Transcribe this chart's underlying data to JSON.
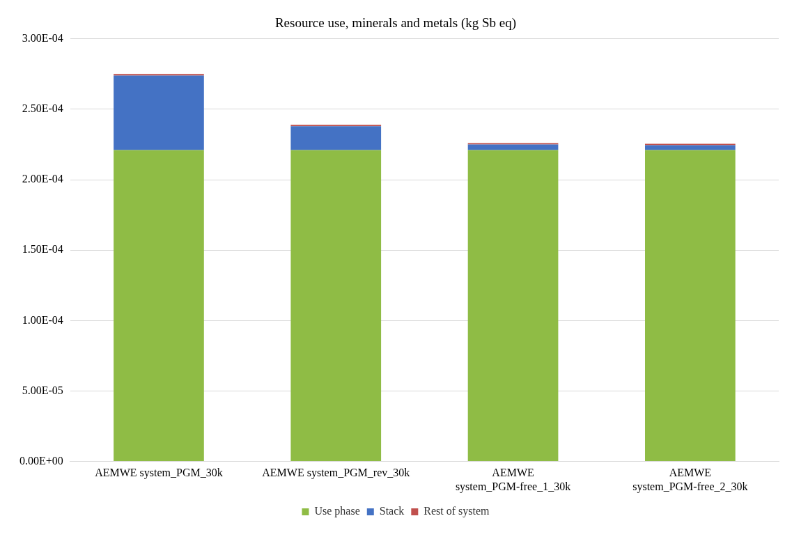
{
  "chart_data": {
    "type": "bar",
    "title": "Resource use, minerals and metals (kg Sb eq)",
    "categories": [
      "AEMWE system_PGM_30k",
      "AEMWE system_PGM_rev_30k",
      "AEMWE system_PGM-free_1_30k",
      "AEMWE system_PGM-free_2_30k"
    ],
    "series": [
      {
        "name": "Use phase",
        "color": "#8fbc45",
        "values": [
          0.000221,
          0.000221,
          0.000221,
          0.000221
        ]
      },
      {
        "name": "Stack",
        "color": "#4472c4",
        "values": [
          5.3e-05,
          1.7e-05,
          4e-06,
          3.5e-06
        ]
      },
      {
        "name": "Rest of system",
        "color": "#c0504d",
        "values": [
          1e-06,
          1e-06,
          1e-06,
          1e-06
        ]
      }
    ],
    "stacked": true,
    "ylim": [
      0,
      0.0003
    ],
    "yticks": [
      {
        "value": 0,
        "label": "0.00E+00"
      },
      {
        "value": 5e-05,
        "label": "5.00E-05"
      },
      {
        "value": 0.0001,
        "label": "1.00E-04"
      },
      {
        "value": 0.00015,
        "label": "1.50E-04"
      },
      {
        "value": 0.0002,
        "label": "2.00E-04"
      },
      {
        "value": 0.00025,
        "label": "2.50E-04"
      },
      {
        "value": 0.0003,
        "label": "3.00E-04"
      }
    ],
    "grid": "y",
    "legend": "bottom"
  }
}
